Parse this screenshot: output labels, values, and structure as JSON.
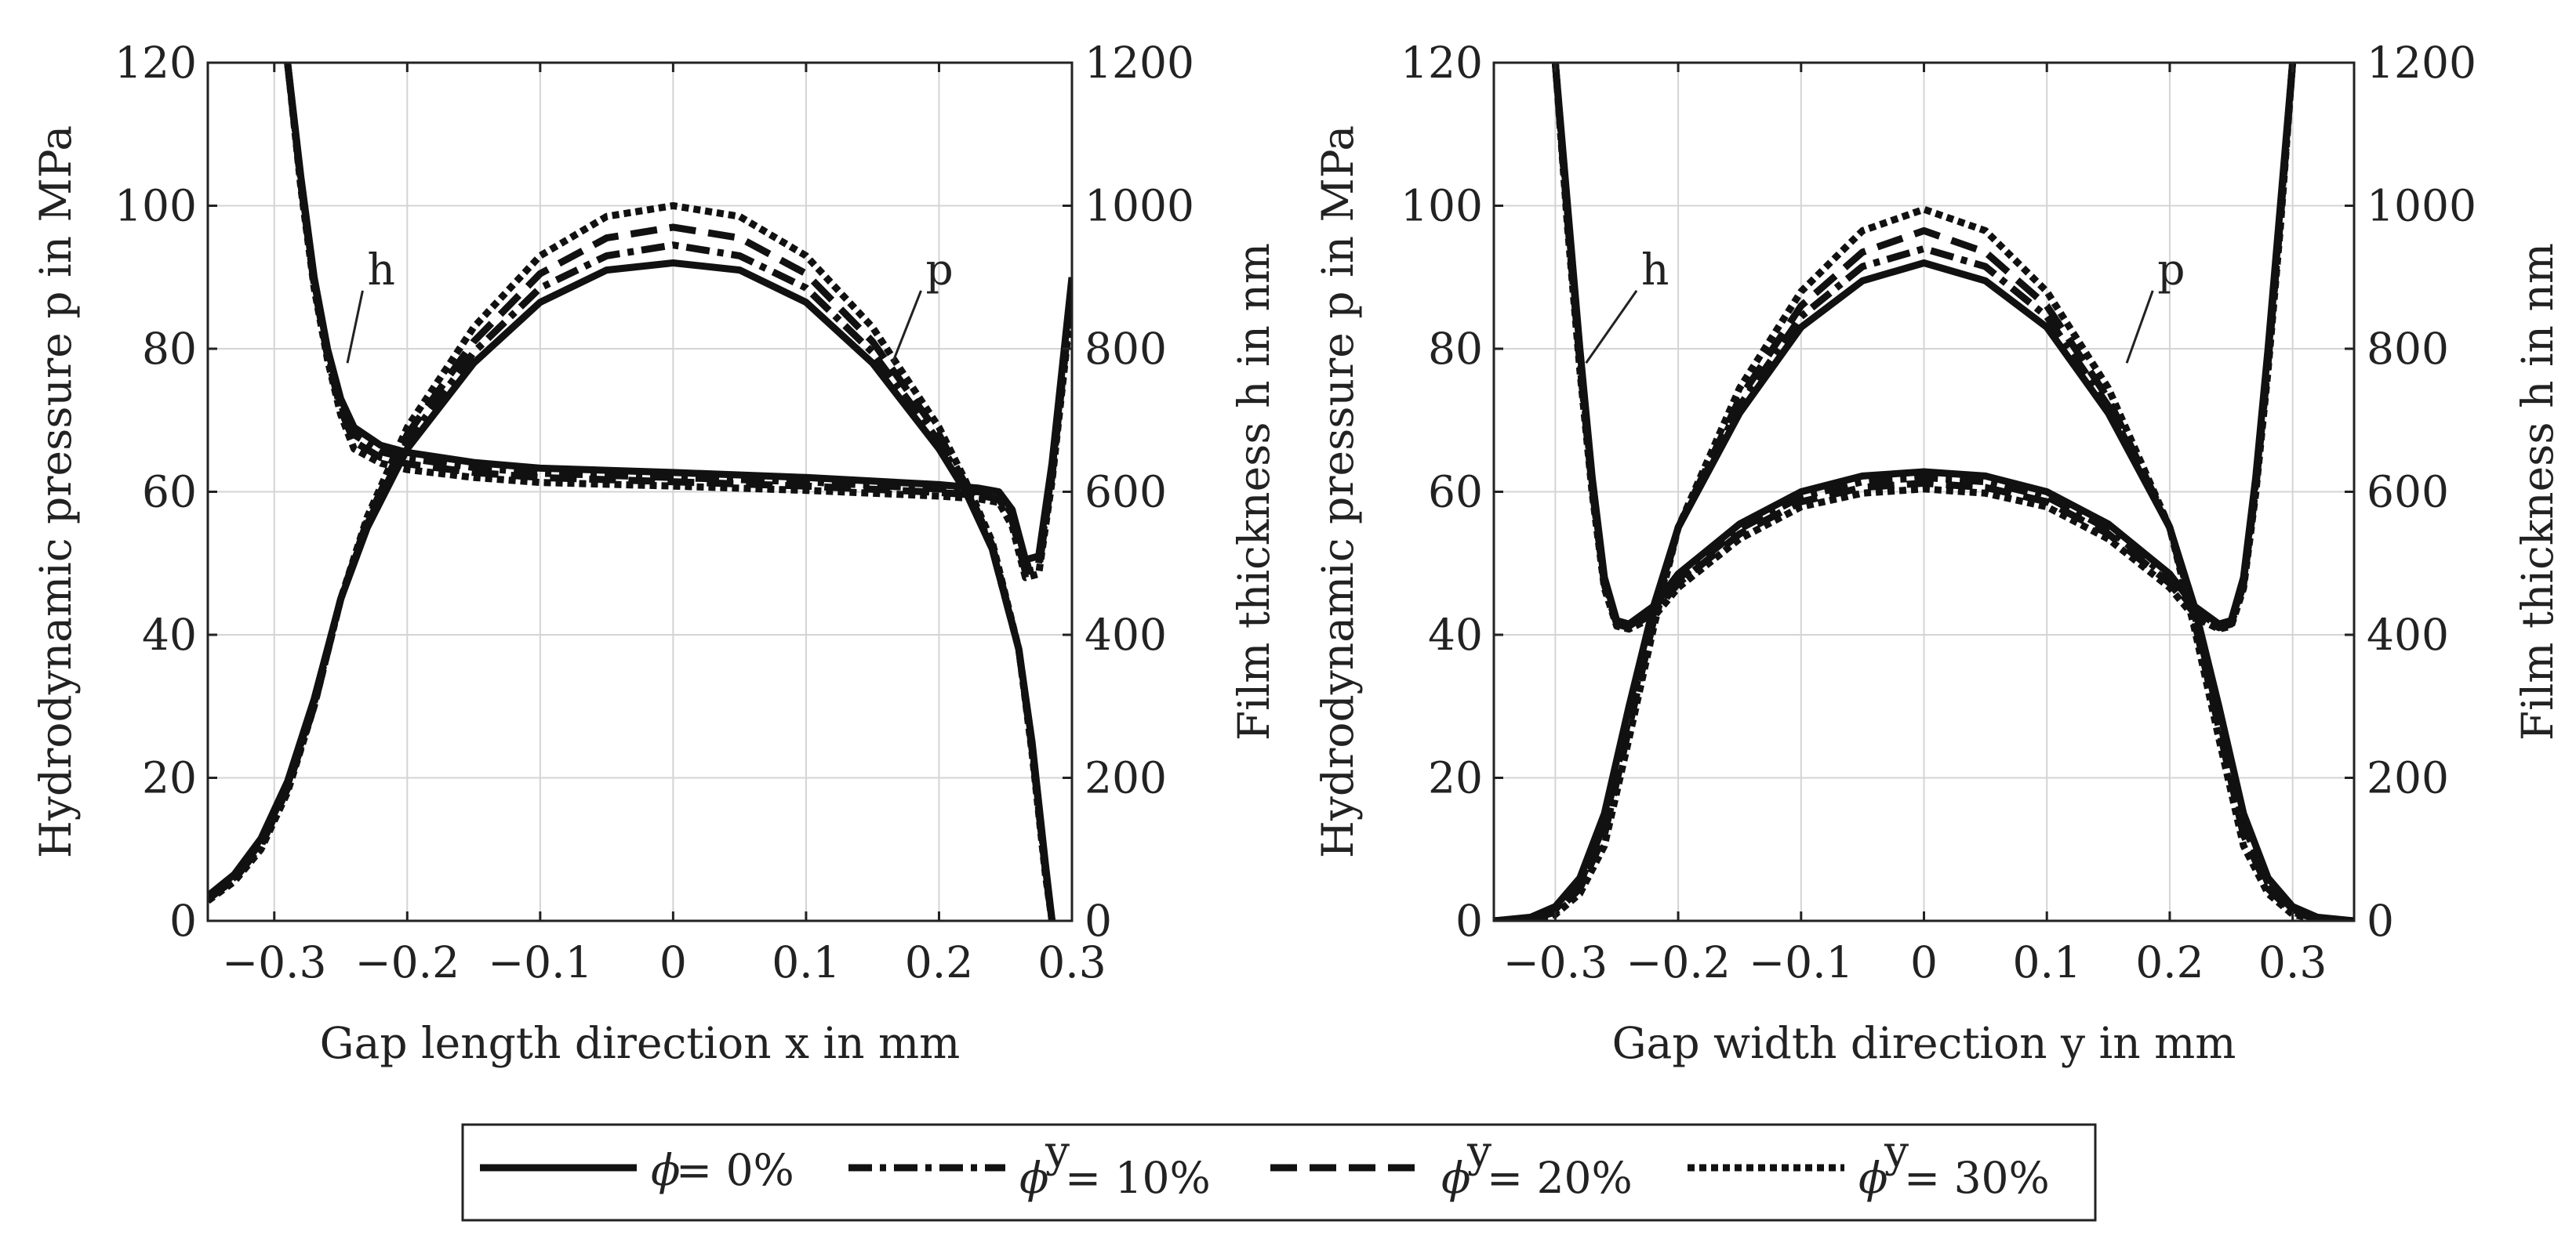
{
  "chart_data": [
    {
      "type": "line",
      "xlabel": "Gap length direction x in mm",
      "ylabel_left": "Hydrodynamic pressure p in MPa",
      "ylabel_right": "Film thickness h in nm",
      "xlim": [
        -0.35,
        0.3
      ],
      "ylim_left": [
        0,
        120
      ],
      "ylim_right": [
        0,
        1200
      ],
      "xticks": [
        -0.3,
        -0.2,
        -0.1,
        0,
        0.1,
        0.2,
        0.3
      ],
      "xtick_labels": [
        "−0.3",
        "−0.2",
        "−0.1",
        "0",
        "0.1",
        "0.2",
        "0.3"
      ],
      "yticks_left": [
        0,
        20,
        40,
        60,
        80,
        100,
        120
      ],
      "ytick_labels_left": [
        "0",
        "20",
        "40",
        "60",
        "80",
        "100",
        "120"
      ],
      "yticks_right": [
        0,
        200,
        400,
        600,
        800,
        1000,
        1200
      ],
      "ytick_labels_right": [
        "0",
        "200",
        "400",
        "600",
        "800",
        "1000",
        "1200"
      ],
      "grid": true,
      "annotations": [
        {
          "text": "h",
          "x": -0.23,
          "y": 89,
          "target_x": -0.245,
          "target_y": 78
        },
        {
          "text": "p",
          "x": 0.19,
          "y": 89,
          "target_x": 0.165,
          "target_y": 78
        }
      ],
      "series": [
        {
          "name": "ϕ = 0%",
          "quantity": "p",
          "style": "solid",
          "x": [
            -0.35,
            -0.33,
            -0.31,
            -0.29,
            -0.27,
            -0.25,
            -0.23,
            -0.2,
            -0.15,
            -0.1,
            -0.05,
            0,
            0.05,
            0.1,
            0.15,
            0.2,
            0.22,
            0.24,
            0.26,
            0.27,
            0.28,
            0.285
          ],
          "y": [
            3.5,
            6.5,
            11.5,
            19.5,
            31,
            45,
            55,
            66,
            78,
            86.5,
            91,
            92,
            91,
            86.5,
            78,
            66,
            60,
            52,
            38,
            25,
            8,
            0
          ]
        },
        {
          "name": "ϕ = 0%",
          "quantity": "h",
          "style": "solid",
          "x": [
            -0.29,
            -0.28,
            -0.27,
            -0.26,
            -0.25,
            -0.24,
            -0.22,
            -0.2,
            -0.15,
            -0.1,
            0,
            0.1,
            0.2,
            0.23,
            0.245,
            0.255,
            0.265,
            0.275,
            0.285,
            0.3
          ],
          "y": [
            1200,
            1040,
            900,
            800,
            730,
            690,
            665,
            655,
            641,
            633,
            627,
            620,
            610,
            605,
            600,
            575,
            505,
            510,
            640,
            900
          ]
        },
        {
          "name": "ϕʸ = 10%",
          "quantity": "p",
          "style": "dashdot",
          "x": [
            -0.35,
            -0.33,
            -0.31,
            -0.29,
            -0.27,
            -0.25,
            -0.23,
            -0.2,
            -0.15,
            -0.1,
            -0.05,
            0,
            0.05,
            0.1,
            0.15,
            0.2,
            0.22,
            0.24,
            0.26,
            0.27,
            0.28,
            0.285
          ],
          "y": [
            3.2,
            6.1,
            11,
            19,
            30.5,
            45,
            55.5,
            67,
            79.5,
            88.5,
            93,
            94.5,
            93,
            88.5,
            79.5,
            67,
            60.5,
            52,
            38,
            24.5,
            7.5,
            0
          ]
        },
        {
          "name": "ϕʸ = 10%",
          "quantity": "h",
          "style": "dashdot",
          "x": [
            -0.29,
            -0.28,
            -0.27,
            -0.26,
            -0.25,
            -0.24,
            -0.22,
            -0.2,
            -0.15,
            -0.1,
            0,
            0.1,
            0.2,
            0.23,
            0.245,
            0.255,
            0.265,
            0.275,
            0.285,
            0.3
          ],
          "y": [
            1200,
            1035,
            895,
            795,
            722,
            680,
            656,
            647,
            634,
            626,
            620,
            614,
            604,
            600,
            595,
            568,
            495,
            500,
            630,
            890
          ]
        },
        {
          "name": "ϕʸ = 20%",
          "quantity": "p",
          "style": "dashed",
          "x": [
            -0.35,
            -0.33,
            -0.31,
            -0.29,
            -0.27,
            -0.25,
            -0.23,
            -0.2,
            -0.15,
            -0.1,
            -0.05,
            0,
            0.05,
            0.1,
            0.15,
            0.2,
            0.22,
            0.24,
            0.26,
            0.27,
            0.28,
            0.285
          ],
          "y": [
            3,
            5.8,
            10.5,
            18.5,
            30,
            45,
            56,
            68,
            81,
            90.5,
            95.5,
            97,
            95.5,
            90.5,
            81,
            68,
            61,
            52.5,
            38,
            24,
            7,
            0
          ]
        },
        {
          "name": "ϕʸ = 20%",
          "quantity": "h",
          "style": "dashed",
          "x": [
            -0.29,
            -0.28,
            -0.27,
            -0.26,
            -0.25,
            -0.24,
            -0.22,
            -0.2,
            -0.15,
            -0.1,
            0,
            0.1,
            0.2,
            0.23,
            0.245,
            0.255,
            0.265,
            0.275,
            0.285,
            0.3
          ],
          "y": [
            1200,
            1030,
            890,
            790,
            715,
            670,
            648,
            639,
            627,
            620,
            614,
            608,
            599,
            595,
            590,
            560,
            488,
            492,
            622,
            880
          ]
        },
        {
          "name": "ϕʸ = 30%",
          "quantity": "p",
          "style": "dotted",
          "x": [
            -0.35,
            -0.33,
            -0.31,
            -0.29,
            -0.27,
            -0.25,
            -0.23,
            -0.2,
            -0.15,
            -0.1,
            -0.05,
            0,
            0.05,
            0.1,
            0.15,
            0.2,
            0.22,
            0.24,
            0.26,
            0.27,
            0.28,
            0.285
          ],
          "y": [
            2.8,
            5.5,
            10,
            18,
            30,
            45,
            56.5,
            69,
            83,
            93,
            98.5,
            100,
            98.5,
            93,
            83,
            69,
            61.5,
            53,
            38,
            23.5,
            6.5,
            0
          ]
        },
        {
          "name": "ϕʸ = 30%",
          "quantity": "h",
          "style": "dotted",
          "x": [
            -0.29,
            -0.28,
            -0.27,
            -0.26,
            -0.25,
            -0.24,
            -0.22,
            -0.2,
            -0.15,
            -0.1,
            0,
            0.1,
            0.2,
            0.23,
            0.245,
            0.255,
            0.265,
            0.275,
            0.285,
            0.3
          ],
          "y": [
            1200,
            1025,
            885,
            785,
            708,
            660,
            640,
            631,
            620,
            613,
            608,
            602,
            594,
            590,
            585,
            552,
            480,
            485,
            615,
            870
          ]
        }
      ]
    },
    {
      "type": "line",
      "xlabel": "Gap width direction y in mm",
      "ylabel_left": "Hydrodynamic pressure p in MPa",
      "ylabel_right": "Film thickness h in nm",
      "xlim": [
        -0.35,
        0.35
      ],
      "ylim_left": [
        0,
        120
      ],
      "ylim_right": [
        0,
        1200
      ],
      "xticks": [
        -0.3,
        -0.2,
        -0.1,
        0,
        0.1,
        0.2,
        0.3
      ],
      "xtick_labels": [
        "−0.3",
        "−0.2",
        "−0.1",
        "0",
        "0.1",
        "0.2",
        "0.3"
      ],
      "yticks_left": [
        0,
        20,
        40,
        60,
        80,
        100,
        120
      ],
      "ytick_labels_left": [
        "0",
        "20",
        "40",
        "60",
        "80",
        "100",
        "120"
      ],
      "yticks_right": [
        0,
        200,
        400,
        600,
        800,
        1000,
        1200
      ],
      "ytick_labels_right": [
        "0",
        "200",
        "400",
        "600",
        "800",
        "1000",
        "1200"
      ],
      "grid": true,
      "annotations": [
        {
          "text": "h",
          "x": -0.23,
          "y": 89,
          "target_x": -0.275,
          "target_y": 78
        },
        {
          "text": "p",
          "x": 0.19,
          "y": 89,
          "target_x": 0.165,
          "target_y": 78
        }
      ],
      "series": [
        {
          "name": "ϕ = 0%",
          "quantity": "p",
          "style": "solid",
          "x": [
            -0.35,
            -0.32,
            -0.3,
            -0.28,
            -0.26,
            -0.24,
            -0.22,
            -0.2,
            -0.15,
            -0.1,
            -0.05,
            0,
            0.05,
            0.1,
            0.15,
            0.2,
            0.22,
            0.24,
            0.26,
            0.28,
            0.3,
            0.32,
            0.35
          ],
          "y": [
            0,
            0.5,
            2,
            6,
            15,
            30,
            44,
            55,
            71,
            83,
            89.5,
            92,
            89.5,
            83,
            71,
            55,
            44,
            30,
            15,
            6,
            2,
            0.5,
            0
          ]
        },
        {
          "name": "ϕ = 0%",
          "quantity": "h",
          "style": "solid",
          "x": [
            -0.3,
            -0.29,
            -0.28,
            -0.27,
            -0.26,
            -0.25,
            -0.24,
            -0.22,
            -0.2,
            -0.15,
            -0.1,
            -0.05,
            0,
            0.05,
            0.1,
            0.15,
            0.2,
            0.22,
            0.24,
            0.25,
            0.26,
            0.27,
            0.28,
            0.29,
            0.3
          ],
          "y": [
            1200,
            1000,
            800,
            620,
            480,
            420,
            415,
            440,
            485,
            555,
            600,
            622,
            628,
            622,
            600,
            555,
            485,
            440,
            415,
            420,
            480,
            620,
            800,
            1000,
            1200
          ]
        },
        {
          "name": "ϕʸ = 10%",
          "quantity": "p",
          "style": "dashdot",
          "x": [
            -0.35,
            -0.32,
            -0.3,
            -0.28,
            -0.26,
            -0.24,
            -0.22,
            -0.2,
            -0.15,
            -0.1,
            -0.05,
            0,
            0.05,
            0.1,
            0.15,
            0.2,
            0.22,
            0.24,
            0.26,
            0.28,
            0.3,
            0.32,
            0.35
          ],
          "y": [
            0,
            0.4,
            1.6,
            5.2,
            13.5,
            28.5,
            43,
            55,
            72,
            84.5,
            91.5,
            94,
            91.5,
            84.5,
            72,
            55,
            43,
            28.5,
            13.5,
            5.2,
            1.6,
            0.4,
            0
          ]
        },
        {
          "name": "ϕʸ = 10%",
          "quantity": "h",
          "style": "dashdot",
          "x": [
            -0.3,
            -0.29,
            -0.28,
            -0.27,
            -0.26,
            -0.25,
            -0.24,
            -0.22,
            -0.2,
            -0.15,
            -0.1,
            -0.05,
            0,
            0.05,
            0.1,
            0.15,
            0.2,
            0.22,
            0.24,
            0.25,
            0.26,
            0.27,
            0.28,
            0.29,
            0.3
          ],
          "y": [
            1200,
            990,
            790,
            612,
            475,
            418,
            412,
            435,
            478,
            548,
            593,
            614,
            620,
            614,
            593,
            548,
            478,
            435,
            412,
            418,
            475,
            612,
            790,
            990,
            1200
          ]
        },
        {
          "name": "ϕʸ = 20%",
          "quantity": "p",
          "style": "dashed",
          "x": [
            -0.35,
            -0.32,
            -0.3,
            -0.28,
            -0.26,
            -0.24,
            -0.22,
            -0.2,
            -0.15,
            -0.1,
            -0.05,
            0,
            0.05,
            0.1,
            0.15,
            0.2,
            0.22,
            0.24,
            0.26,
            0.28,
            0.3,
            0.32,
            0.35
          ],
          "y": [
            0,
            0.3,
            1.2,
            4.5,
            12,
            27,
            42,
            55,
            73,
            86,
            93.5,
            96.5,
            93.5,
            86,
            73,
            55,
            42,
            27,
            12,
            4.5,
            1.2,
            0.3,
            0
          ]
        },
        {
          "name": "ϕʸ = 20%",
          "quantity": "h",
          "style": "dashed",
          "x": [
            -0.3,
            -0.29,
            -0.28,
            -0.27,
            -0.26,
            -0.25,
            -0.24,
            -0.22,
            -0.2,
            -0.15,
            -0.1,
            -0.05,
            0,
            0.05,
            0.1,
            0.15,
            0.2,
            0.22,
            0.24,
            0.25,
            0.26,
            0.27,
            0.28,
            0.29,
            0.3
          ],
          "y": [
            1200,
            980,
            780,
            605,
            470,
            415,
            410,
            430,
            472,
            541,
            586,
            606,
            612,
            606,
            586,
            541,
            472,
            430,
            410,
            415,
            470,
            605,
            780,
            980,
            1200
          ]
        },
        {
          "name": "ϕʸ = 30%",
          "quantity": "p",
          "style": "dotted",
          "x": [
            -0.35,
            -0.32,
            -0.3,
            -0.28,
            -0.26,
            -0.24,
            -0.22,
            -0.2,
            -0.15,
            -0.1,
            -0.05,
            0,
            0.05,
            0.1,
            0.15,
            0.2,
            0.22,
            0.24,
            0.26,
            0.28,
            0.3,
            0.32,
            0.35
          ],
          "y": [
            0,
            0.2,
            0.9,
            3.8,
            10.5,
            25.5,
            41,
            55,
            74.5,
            88,
            96.5,
            99.5,
            96.5,
            88,
            74.5,
            55,
            41,
            25.5,
            10.5,
            3.8,
            0.9,
            0.2,
            0
          ]
        },
        {
          "name": "ϕʸ = 30%",
          "quantity": "h",
          "style": "dotted",
          "x": [
            -0.3,
            -0.29,
            -0.28,
            -0.27,
            -0.26,
            -0.25,
            -0.24,
            -0.22,
            -0.2,
            -0.15,
            -0.1,
            -0.05,
            0,
            0.05,
            0.1,
            0.15,
            0.2,
            0.22,
            0.24,
            0.25,
            0.26,
            0.27,
            0.28,
            0.29,
            0.3
          ],
          "y": [
            1200,
            970,
            770,
            598,
            465,
            412,
            408,
            425,
            466,
            534,
            579,
            598,
            604,
            598,
            579,
            534,
            466,
            425,
            408,
            412,
            465,
            598,
            770,
            970,
            1200
          ]
        }
      ]
    }
  ],
  "legend": {
    "entries": [
      {
        "symbol": "ϕ",
        "superscript": "",
        "text": " = 0%",
        "style": "solid"
      },
      {
        "symbol": "ϕ",
        "superscript": "y",
        "text": " = 10%",
        "style": "dashdot"
      },
      {
        "symbol": "ϕ",
        "superscript": "y",
        "text": " = 20%",
        "style": "dashed"
      },
      {
        "symbol": "ϕ",
        "superscript": "y",
        "text": " = 30%",
        "style": "dotted"
      }
    ]
  }
}
